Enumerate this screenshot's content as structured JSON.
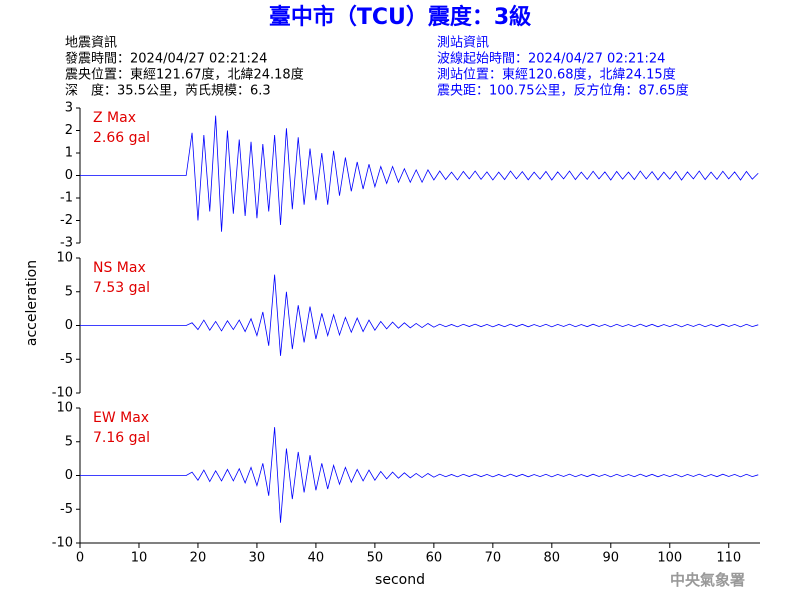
{
  "title": "臺中市（TCU）震度：3級",
  "info_left": [
    "地震資訊",
    "發震時間：2024/04/27 02:21:24",
    "震央位置：東經121.67度，北緯24.18度",
    "深　度：35.5公里，芮氏規模：6.3"
  ],
  "info_right": [
    "測站資訊",
    "波線起始時間：2024/04/27 02:21:24",
    "測站位置：東經120.68度，北緯24.15度",
    "震央距：100.75公里，反方位角：87.65度"
  ],
  "ylabel": "acceleration",
  "footer": "中央氣象署",
  "chart_data": [
    {
      "type": "line",
      "color": "#0000ff",
      "max_label": "Z Max",
      "max_value": "2.66 gal",
      "xlim": [
        0,
        115.3
      ],
      "ylim": [
        -3,
        3
      ],
      "yticks": [
        -3,
        -2,
        -1,
        0,
        1,
        2,
        3
      ],
      "x": [
        0,
        1,
        2,
        3,
        4,
        5,
        6,
        7,
        8,
        9,
        10,
        11,
        12,
        13,
        14,
        15,
        16,
        17,
        18,
        19,
        20,
        21,
        22,
        23,
        24,
        25,
        26,
        27,
        28,
        29,
        30,
        31,
        32,
        33,
        34,
        35,
        36,
        37,
        38,
        39,
        40,
        41,
        42,
        43,
        44,
        45,
        46,
        47,
        48,
        49,
        50,
        51,
        52,
        53,
        54,
        55,
        56,
        57,
        58,
        59,
        60,
        61,
        62,
        63,
        64,
        65,
        66,
        67,
        68,
        69,
        70,
        71,
        72,
        73,
        74,
        75,
        76,
        77,
        78,
        79,
        80,
        81,
        82,
        83,
        84,
        85,
        86,
        87,
        88,
        89,
        90,
        91,
        92,
        93,
        94,
        95,
        96,
        97,
        98,
        99,
        100,
        101,
        102,
        103,
        104,
        105,
        106,
        107,
        108,
        109,
        110,
        111,
        112,
        113,
        114,
        115
      ],
      "values": [
        0,
        0,
        0,
        0,
        0,
        0,
        0,
        0,
        0,
        0,
        0,
        0,
        0,
        0,
        0,
        0,
        0,
        0,
        0,
        1.9,
        -2.0,
        1.8,
        -1.6,
        2.66,
        -2.5,
        2.0,
        -1.7,
        1.6,
        -1.8,
        1.5,
        -1.9,
        1.4,
        -1.6,
        1.8,
        -2.2,
        2.1,
        -1.5,
        1.7,
        -1.3,
        1.2,
        -1.1,
        1.0,
        -1.3,
        1.1,
        -0.9,
        0.8,
        -0.7,
        0.6,
        -0.6,
        0.5,
        -0.5,
        0.4,
        -0.35,
        0.4,
        -0.3,
        0.3,
        -0.3,
        0.25,
        -0.3,
        0.25,
        -0.2,
        0.2,
        -0.18,
        0.15,
        -0.2,
        0.18,
        -0.15,
        0.2,
        -0.17,
        0.16,
        -0.2,
        0.15,
        -0.18,
        0.2,
        -0.15,
        0.17,
        -0.19,
        0.15,
        -0.16,
        0.18,
        -0.2,
        0.16,
        -0.15,
        0.2,
        -0.18,
        0.15,
        -0.17,
        0.19,
        -0.15,
        0.16,
        -0.2,
        0.18,
        -0.16,
        0.15,
        -0.18,
        0.2,
        -0.15,
        0.17,
        -0.19,
        0.15,
        -0.16,
        0.18,
        -0.2,
        0.16,
        -0.15,
        0.2,
        -0.18,
        0.15,
        -0.17,
        0.19,
        -0.15,
        0.16,
        -0.2,
        0.18,
        -0.16,
        0.1
      ]
    },
    {
      "type": "line",
      "color": "#0000ff",
      "max_label": "NS Max",
      "max_value": "7.53 gal",
      "xlim": [
        0,
        115.3
      ],
      "ylim": [
        -10,
        10
      ],
      "yticks": [
        -10,
        -5,
        0,
        5,
        10
      ],
      "x": [
        0,
        1,
        2,
        3,
        4,
        5,
        6,
        7,
        8,
        9,
        10,
        11,
        12,
        13,
        14,
        15,
        16,
        17,
        18,
        19,
        20,
        21,
        22,
        23,
        24,
        25,
        26,
        27,
        28,
        29,
        30,
        31,
        32,
        33,
        34,
        35,
        36,
        37,
        38,
        39,
        40,
        41,
        42,
        43,
        44,
        45,
        46,
        47,
        48,
        49,
        50,
        51,
        52,
        53,
        54,
        55,
        56,
        57,
        58,
        59,
        60,
        61,
        62,
        63,
        64,
        65,
        66,
        67,
        68,
        69,
        70,
        71,
        72,
        73,
        74,
        75,
        76,
        77,
        78,
        79,
        80,
        81,
        82,
        83,
        84,
        85,
        86,
        87,
        88,
        89,
        90,
        91,
        92,
        93,
        94,
        95,
        96,
        97,
        98,
        99,
        100,
        101,
        102,
        103,
        104,
        105,
        106,
        107,
        108,
        109,
        110,
        111,
        112,
        113,
        114,
        115
      ],
      "values": [
        0,
        0,
        0,
        0,
        0,
        0,
        0,
        0,
        0,
        0,
        0,
        0,
        0,
        0,
        0,
        0,
        0,
        0,
        0,
        0.4,
        -0.6,
        0.8,
        -0.7,
        0.6,
        -0.8,
        0.7,
        -0.6,
        0.8,
        -0.9,
        1.0,
        -1.5,
        2.0,
        -3.0,
        7.53,
        -4.5,
        5.0,
        -3.5,
        3.0,
        -2.5,
        2.8,
        -2.0,
        1.8,
        -1.5,
        1.6,
        -1.4,
        1.2,
        -1.0,
        1.1,
        -0.9,
        0.8,
        -0.7,
        0.6,
        -0.5,
        0.5,
        -0.4,
        0.4,
        -0.35,
        0.3,
        -0.3,
        0.3,
        -0.25,
        0.2,
        -0.18,
        0.15,
        -0.2,
        0.18,
        -0.15,
        0.2,
        -0.17,
        0.16,
        -0.2,
        0.15,
        -0.18,
        0.2,
        -0.15,
        0.17,
        -0.19,
        0.15,
        -0.16,
        0.18,
        -0.2,
        0.16,
        -0.15,
        0.2,
        -0.18,
        0.15,
        -0.17,
        0.19,
        -0.15,
        0.16,
        -0.2,
        0.18,
        -0.16,
        0.15,
        -0.18,
        0.2,
        -0.15,
        0.17,
        -0.19,
        0.15,
        -0.16,
        0.18,
        -0.2,
        0.16,
        -0.15,
        0.2,
        -0.18,
        0.15,
        -0.17,
        0.19,
        -0.15,
        0.16,
        -0.2,
        0.18,
        -0.16,
        0.1
      ]
    },
    {
      "type": "line",
      "color": "#0000ff",
      "max_label": "EW Max",
      "max_value": "7.16 gal",
      "xlim": [
        0,
        115.3
      ],
      "ylim": [
        -10,
        10
      ],
      "yticks": [
        -10,
        -5,
        0,
        5,
        10
      ],
      "xticks": [
        0,
        10,
        20,
        30,
        40,
        50,
        60,
        70,
        80,
        90,
        100,
        110
      ],
      "xlabel": "second",
      "x": [
        0,
        1,
        2,
        3,
        4,
        5,
        6,
        7,
        8,
        9,
        10,
        11,
        12,
        13,
        14,
        15,
        16,
        17,
        18,
        19,
        20,
        21,
        22,
        23,
        24,
        25,
        26,
        27,
        28,
        29,
        30,
        31,
        32,
        33,
        34,
        35,
        36,
        37,
        38,
        39,
        40,
        41,
        42,
        43,
        44,
        45,
        46,
        47,
        48,
        49,
        50,
        51,
        52,
        53,
        54,
        55,
        56,
        57,
        58,
        59,
        60,
        61,
        62,
        63,
        64,
        65,
        66,
        67,
        68,
        69,
        70,
        71,
        72,
        73,
        74,
        75,
        76,
        77,
        78,
        79,
        80,
        81,
        82,
        83,
        84,
        85,
        86,
        87,
        88,
        89,
        90,
        91,
        92,
        93,
        94,
        95,
        96,
        97,
        98,
        99,
        100,
        101,
        102,
        103,
        104,
        105,
        106,
        107,
        108,
        109,
        110,
        111,
        112,
        113,
        114,
        115
      ],
      "values": [
        0,
        0,
        0,
        0,
        0,
        0,
        0,
        0,
        0,
        0,
        0,
        0,
        0,
        0,
        0,
        0,
        0,
        0,
        0,
        0.5,
        -0.7,
        0.8,
        -0.9,
        0.7,
        -0.8,
        0.9,
        -0.8,
        1.0,
        -1.1,
        1.2,
        -1.5,
        1.8,
        -3.0,
        7.16,
        -7.0,
        4.0,
        -3.5,
        3.5,
        -2.5,
        3.0,
        -2.2,
        1.8,
        -2.0,
        1.5,
        -1.3,
        1.2,
        -1.0,
        0.9,
        -0.8,
        0.8,
        -0.7,
        0.6,
        -0.5,
        0.5,
        -0.4,
        0.4,
        -0.35,
        0.3,
        -0.3,
        0.3,
        -0.25,
        0.2,
        -0.18,
        0.15,
        -0.2,
        0.18,
        -0.15,
        0.2,
        -0.17,
        0.16,
        -0.2,
        0.15,
        -0.18,
        0.2,
        -0.15,
        0.17,
        -0.19,
        0.15,
        -0.16,
        0.18,
        -0.2,
        0.16,
        -0.15,
        0.2,
        -0.18,
        0.15,
        -0.17,
        0.19,
        -0.15,
        0.16,
        -0.2,
        0.18,
        -0.16,
        0.15,
        -0.18,
        0.2,
        -0.15,
        0.17,
        -0.19,
        0.15,
        -0.16,
        0.18,
        -0.2,
        0.16,
        -0.15,
        0.2,
        -0.18,
        0.15,
        -0.17,
        0.19,
        -0.15,
        0.16,
        -0.2,
        0.18,
        -0.16,
        0.1
      ]
    }
  ]
}
